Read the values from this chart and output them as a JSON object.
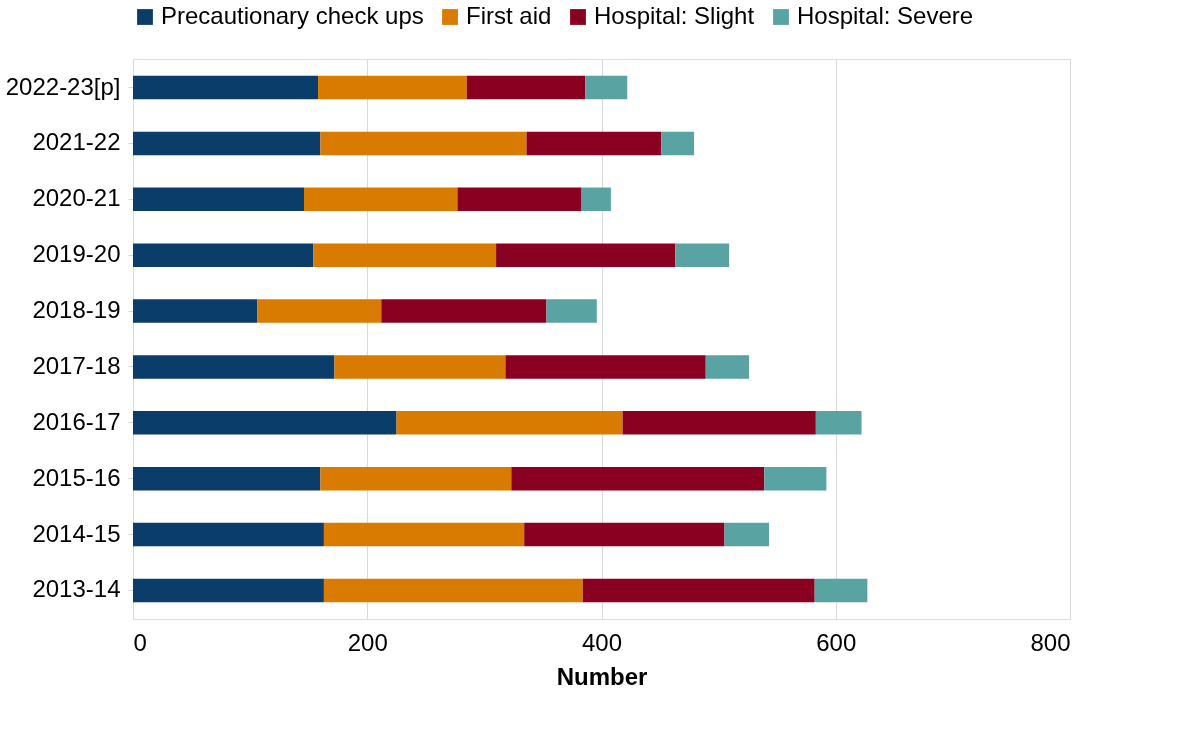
{
  "chart_data": {
    "type": "bar",
    "orientation": "horizontal",
    "stacked": true,
    "xlabel": "Number",
    "categories": [
      "2022-23[p]",
      "2021-22",
      "2020-21",
      "2019-20",
      "2018-19",
      "2017-18",
      "2016-17",
      "2015-16",
      "2014-15",
      "2013-14"
    ],
    "series": [
      {
        "name": "Precautionary check ups",
        "color": "#0b3d6b",
        "values": [
          158,
          160,
          146,
          154,
          106,
          172,
          225,
          160,
          163,
          163
        ]
      },
      {
        "name": "First aid",
        "color": "#d97b00",
        "values": [
          127,
          176,
          131,
          156,
          106,
          146,
          193,
          163,
          171,
          221
        ]
      },
      {
        "name": "Hospital: Slight",
        "color": "#8a0021",
        "values": [
          101,
          115,
          106,
          153,
          141,
          171,
          165,
          216,
          171,
          198
        ]
      },
      {
        "name": "Hospital: Severe",
        "color": "#5aa3a3",
        "values": [
          36,
          28,
          25,
          46,
          43,
          37,
          39,
          53,
          38,
          45
        ]
      }
    ],
    "xlim": [
      0,
      800
    ],
    "xticks": [
      0,
      200,
      400,
      600,
      800
    ],
    "grid": "x",
    "legend": "top"
  }
}
